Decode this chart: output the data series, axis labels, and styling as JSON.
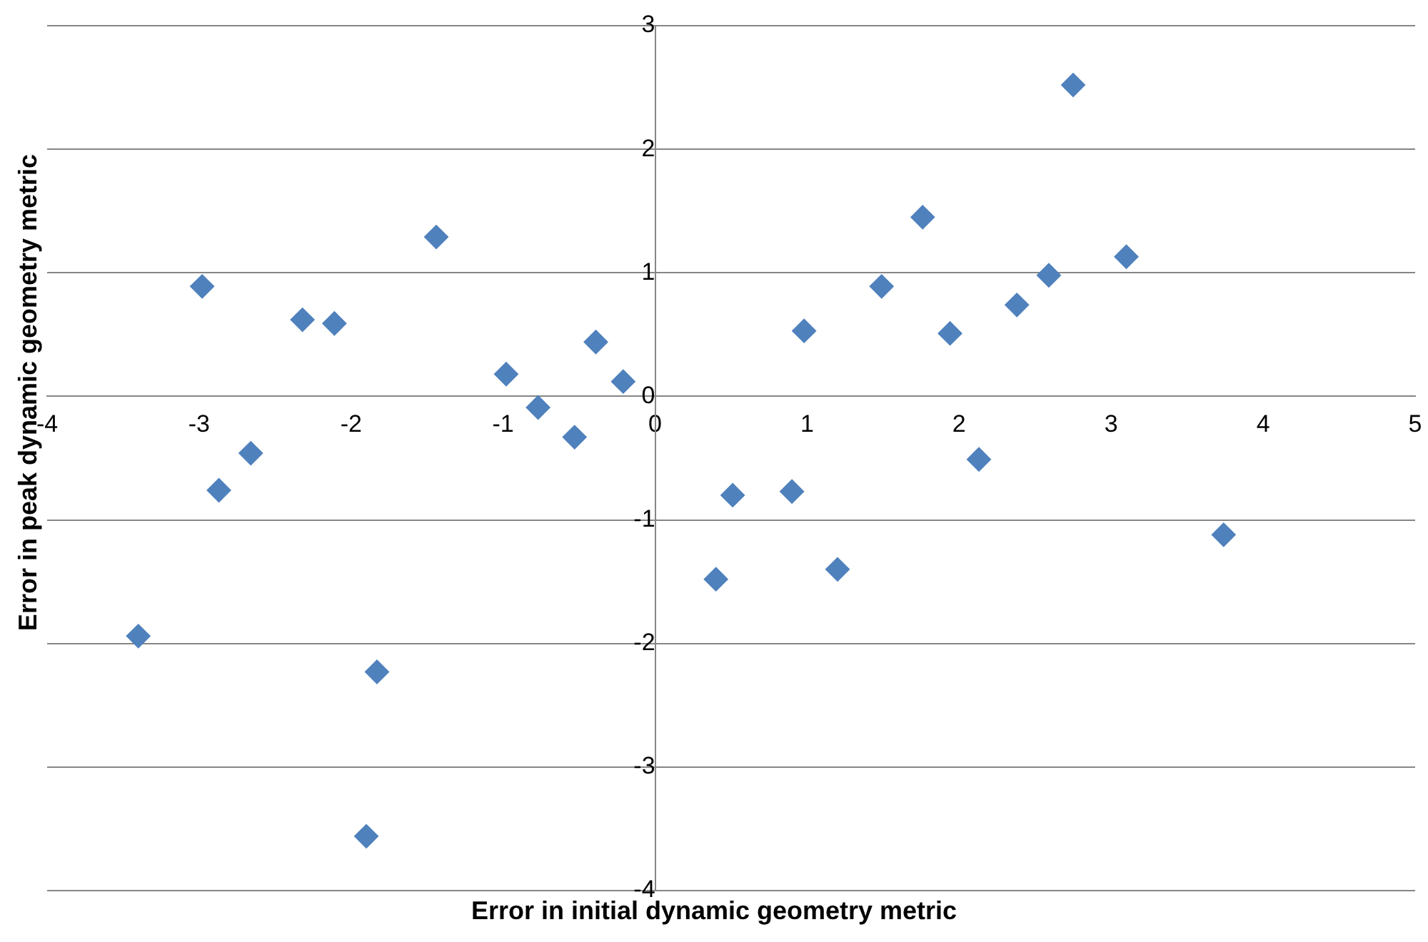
{
  "chart_data": {
    "type": "scatter",
    "xlabel": "Error in initial  dynamic  geometry metric",
    "ylabel": "Error in peak dynamic geometry metric",
    "xlim": [
      -4,
      5
    ],
    "xticks": [
      -4,
      -3,
      -2,
      -1,
      0,
      1,
      2,
      3,
      4,
      5
    ],
    "ylim": [
      -4,
      3
    ],
    "yticks": [
      -4,
      -3,
      -2,
      -1,
      0,
      1,
      2,
      3
    ],
    "grid": "y",
    "marker": "diamond",
    "legend": false,
    "series": [
      {
        "color": "#4f81bd",
        "x": [
          -2.98,
          -2.87,
          -2.66,
          -3.4,
          -2.32,
          -2.11,
          -1.44,
          -1.83,
          -1.9,
          -0.98,
          -0.77,
          -0.53,
          -0.39,
          -0.21,
          0.4,
          0.51,
          0.9,
          0.98,
          1.2,
          1.49,
          1.76,
          1.94,
          2.13,
          2.38,
          2.59,
          2.75,
          3.1,
          3.74
        ],
        "values": [
          0.89,
          -0.76,
          -0.46,
          -1.94,
          0.62,
          0.59,
          1.29,
          -2.23,
          -3.56,
          0.18,
          -0.09,
          -0.33,
          0.44,
          0.12,
          -1.48,
          -0.8,
          -0.77,
          0.53,
          -1.4,
          0.89,
          1.45,
          0.51,
          -0.51,
          0.74,
          0.98,
          2.52,
          1.13,
          -1.12
        ]
      }
    ]
  }
}
